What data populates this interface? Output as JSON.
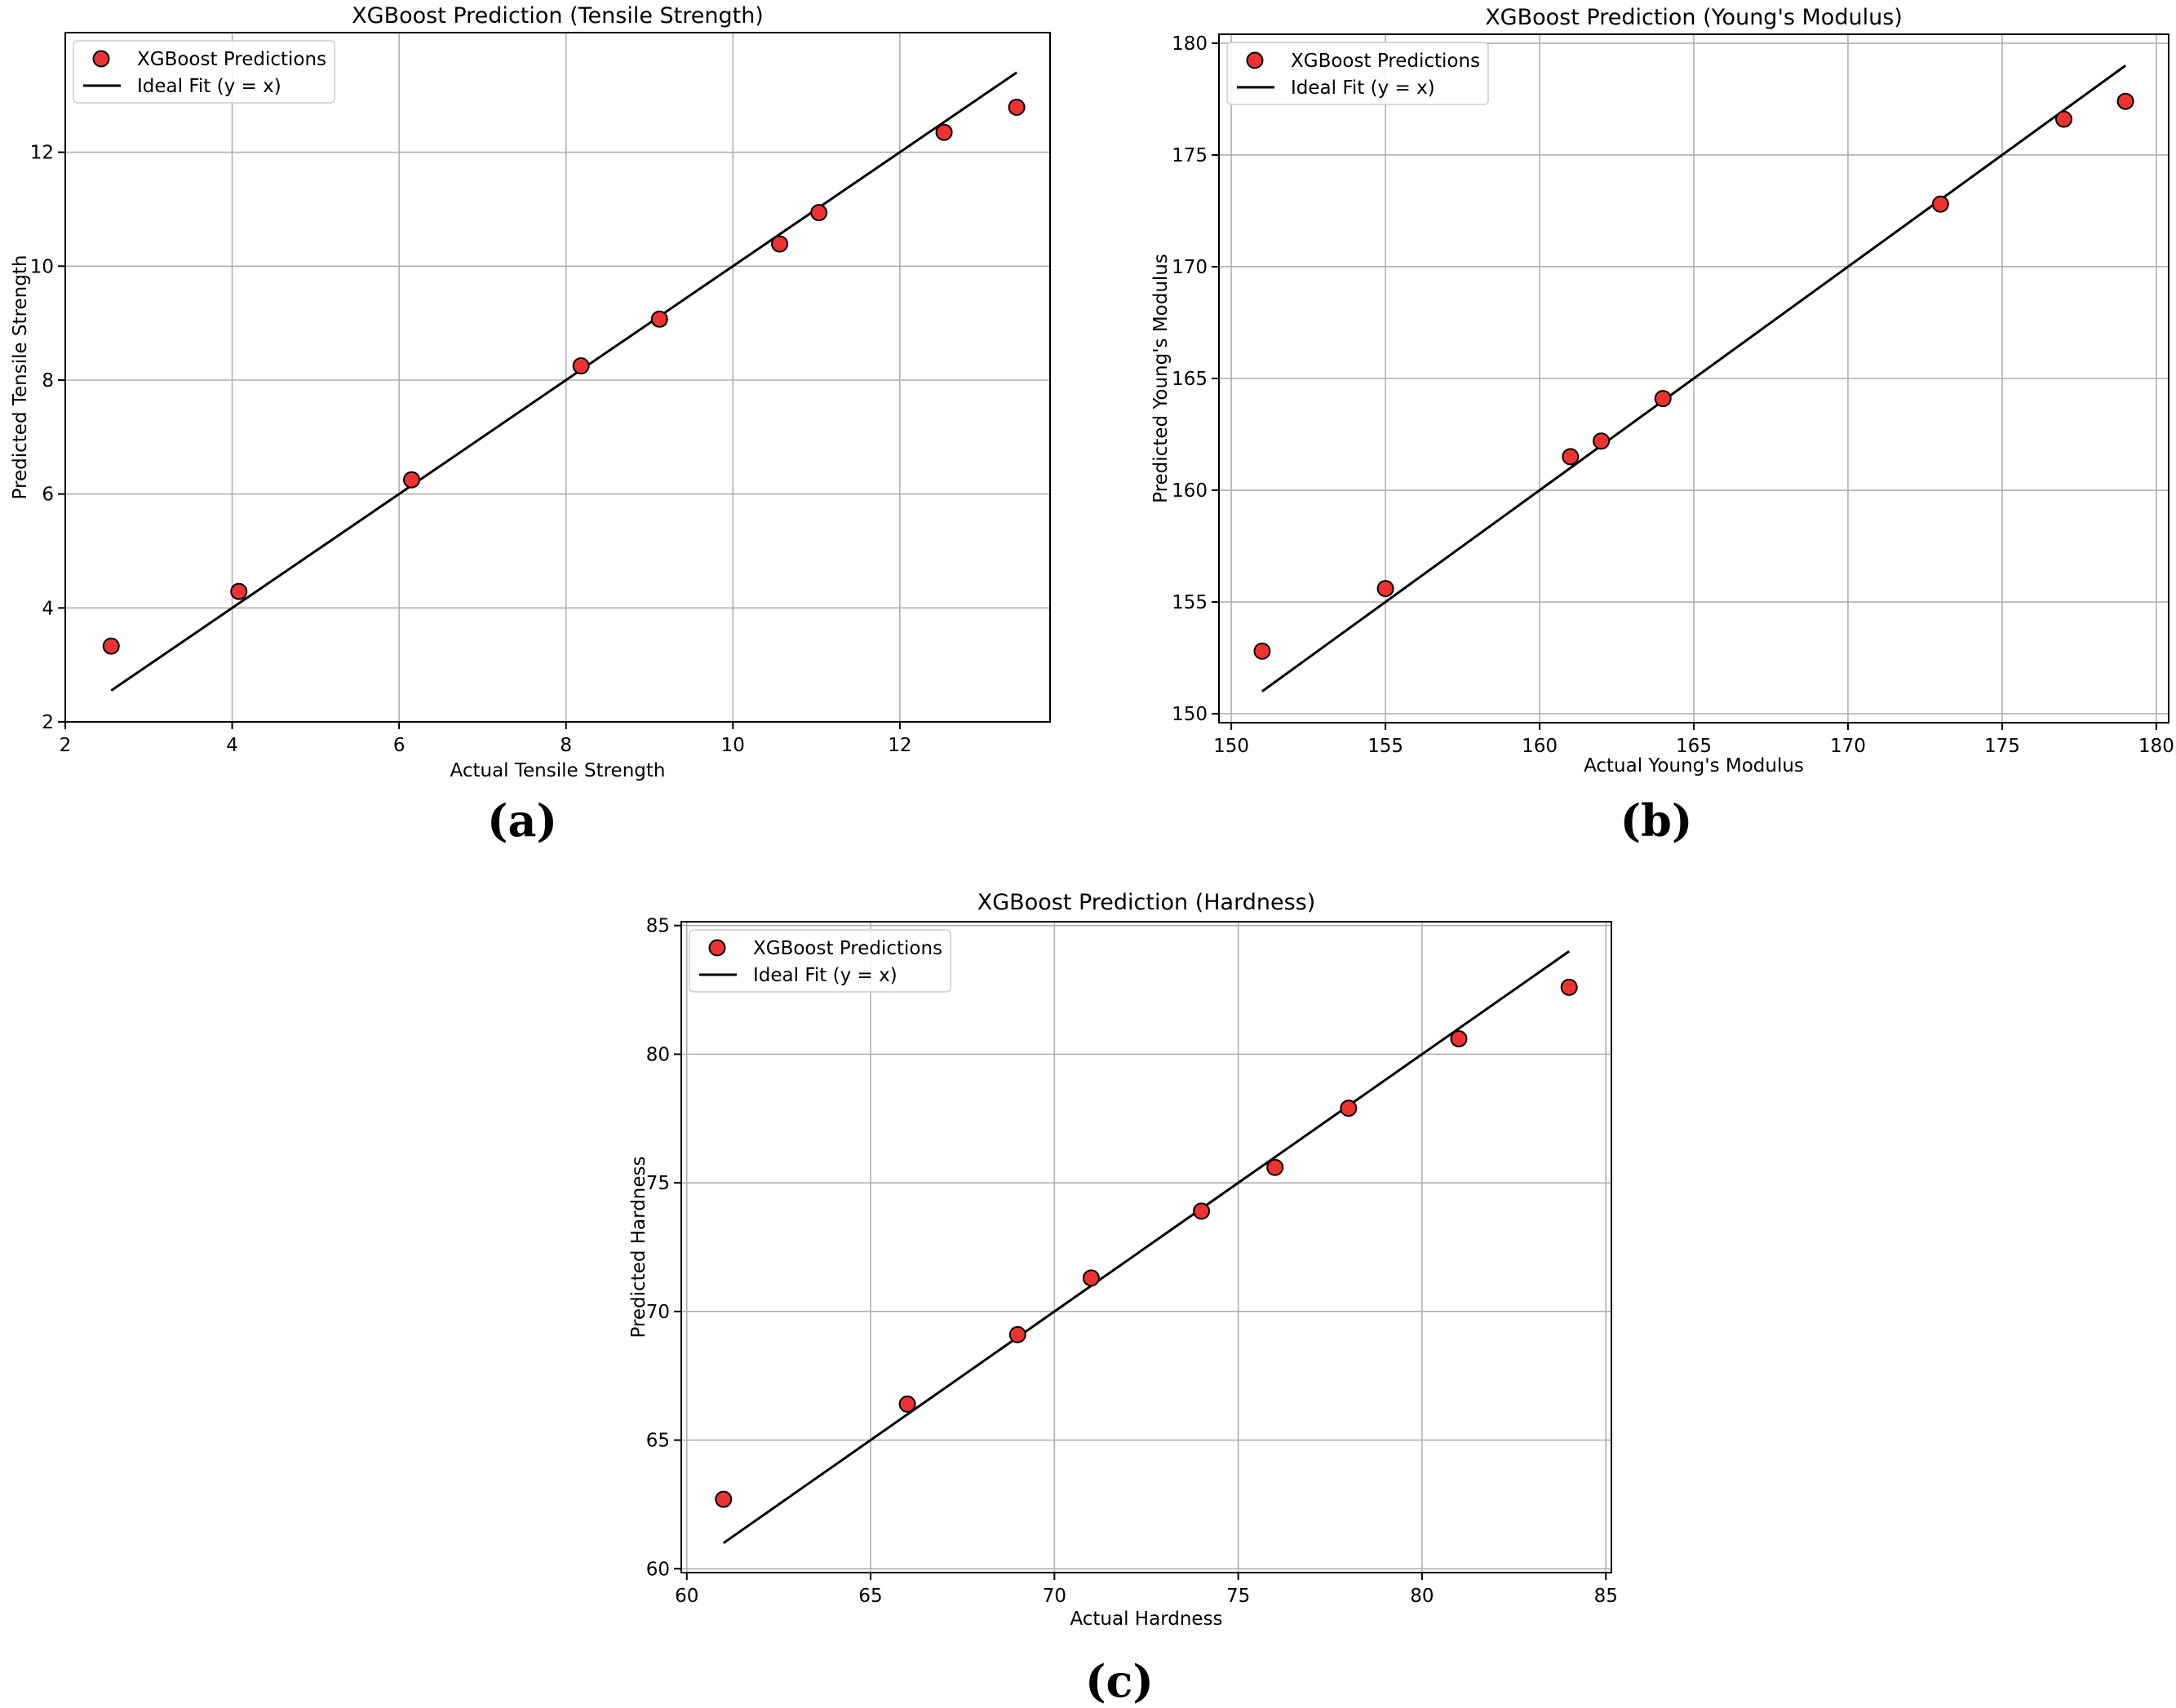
{
  "colors": {
    "point_fill": "#ee3232",
    "point_edge": "#000000",
    "line": "#000000",
    "grid": "#b0b0b0"
  },
  "chart_data": [
    {
      "id": "a",
      "panel_label": "(a)",
      "type": "scatter",
      "title": "XGBoost Prediction (Tensile Strength)",
      "xlabel": "Actual Tensile Strength",
      "ylabel": "Predicted Tensile Strength",
      "xlim": [
        2.0,
        13.8
      ],
      "ylim": [
        2.0,
        14.1
      ],
      "xticks": [
        2,
        4,
        6,
        8,
        10,
        12
      ],
      "yticks": [
        2,
        4,
        6,
        8,
        10,
        12
      ],
      "grid": true,
      "legend_position": "top-left",
      "legend": [
        "XGBoost Predictions",
        "Ideal Fit (y = x)"
      ],
      "x": [
        2.55,
        4.08,
        6.15,
        8.18,
        9.12,
        10.56,
        11.03,
        12.53,
        13.4
      ],
      "y": [
        3.33,
        4.29,
        6.25,
        8.25,
        9.07,
        10.39,
        10.94,
        12.35,
        12.79
      ],
      "ideal_fit": [
        2.55,
        13.4
      ]
    },
    {
      "id": "b",
      "panel_label": "(b)",
      "type": "scatter",
      "title": "XGBoost Prediction (Young's Modulus)",
      "xlabel": "Actual Young's Modulus",
      "ylabel": "Predicted Young's Modulus",
      "xlim": [
        149.6,
        180.4
      ],
      "ylim": [
        149.6,
        180.4
      ],
      "xticks": [
        150,
        155,
        160,
        165,
        170,
        175,
        180
      ],
      "yticks": [
        150,
        155,
        160,
        165,
        170,
        175,
        180
      ],
      "grid": true,
      "legend_position": "top-left",
      "legend": [
        "XGBoost Predictions",
        "Ideal Fit (y = x)"
      ],
      "x": [
        151,
        155,
        161,
        162,
        164,
        173,
        177,
        179
      ],
      "y": [
        152.8,
        155.6,
        161.5,
        162.2,
        164.1,
        172.8,
        176.6,
        177.4
      ],
      "ideal_fit": [
        151,
        179
      ]
    },
    {
      "id": "c",
      "panel_label": "(c)",
      "type": "scatter",
      "title": "XGBoost Prediction (Hardness)",
      "xlabel": "Actual Hardness",
      "ylabel": "Predicted Hardness",
      "xlim": [
        59.85,
        85.15
      ],
      "ylim": [
        59.85,
        85.15
      ],
      "xticks": [
        60,
        65,
        70,
        75,
        80,
        85
      ],
      "yticks": [
        60,
        65,
        70,
        75,
        80,
        85
      ],
      "grid": true,
      "legend_position": "top-left",
      "legend": [
        "XGBoost Predictions",
        "Ideal Fit (y = x)"
      ],
      "x": [
        61,
        66,
        69,
        71,
        74,
        76,
        78,
        81,
        84
      ],
      "y": [
        62.7,
        66.4,
        69.1,
        71.3,
        73.9,
        75.6,
        77.9,
        80.6,
        82.6
      ],
      "ideal_fit": [
        61,
        84
      ]
    }
  ]
}
